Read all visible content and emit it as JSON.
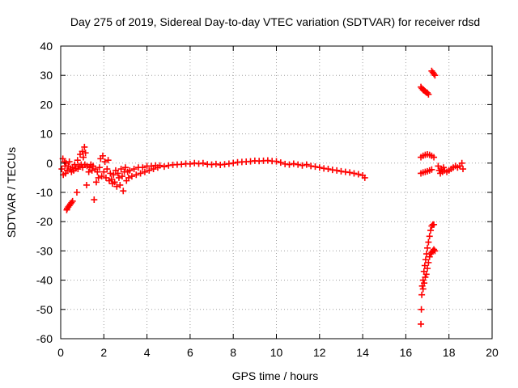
{
  "chart_data": {
    "type": "scatter",
    "title": "Day 275 of 2019, Sidereal Day-to-day VTEC variation (SDTVAR) for receiver rdsd",
    "xlabel": "GPS time / hours",
    "ylabel": "SDTVAR / TECUs",
    "xlim": [
      0,
      20
    ],
    "ylim": [
      -60,
      40
    ],
    "xticks": [
      "0",
      "2",
      "4",
      "6",
      "8",
      "10",
      "12",
      "14",
      "16",
      "18",
      "20"
    ],
    "yticks": [
      "40",
      "30",
      "20",
      "10",
      "0",
      "-10",
      "-20",
      "-30",
      "-40",
      "-50",
      "-60"
    ],
    "grid": true,
    "marker": "+",
    "series_color": "#ff0000",
    "series": [
      {
        "name": "SDTVAR",
        "points": [
          [
            0.05,
            -2.0
          ],
          [
            0.1,
            1.5
          ],
          [
            0.12,
            -4.0
          ],
          [
            0.18,
            0.5
          ],
          [
            0.2,
            -1.0
          ],
          [
            0.22,
            -3.5
          ],
          [
            0.25,
            0.0
          ],
          [
            0.28,
            -16.0
          ],
          [
            0.3,
            -15.5
          ],
          [
            0.35,
            -15.0
          ],
          [
            0.4,
            -14.5
          ],
          [
            0.45,
            -14.0
          ],
          [
            0.5,
            -13.5
          ],
          [
            0.55,
            -13.0
          ],
          [
            0.3,
            -2.5
          ],
          [
            0.35,
            -1.0
          ],
          [
            0.4,
            0.5
          ],
          [
            0.45,
            -2.0
          ],
          [
            0.5,
            -3.0
          ],
          [
            0.55,
            -1.5
          ],
          [
            0.6,
            -2.5
          ],
          [
            0.65,
            -0.5
          ],
          [
            0.7,
            -1.8
          ],
          [
            0.75,
            -10.0
          ],
          [
            0.78,
            1.0
          ],
          [
            0.8,
            -2.0
          ],
          [
            0.85,
            -1.0
          ],
          [
            0.9,
            3.0
          ],
          [
            0.95,
            -0.5
          ],
          [
            1.0,
            4.0
          ],
          [
            1.02,
            -1.5
          ],
          [
            1.05,
            2.0
          ],
          [
            1.1,
            5.5
          ],
          [
            1.12,
            -0.5
          ],
          [
            1.15,
            3.5
          ],
          [
            1.2,
            -7.5
          ],
          [
            1.22,
            -1.0
          ],
          [
            1.3,
            -3.0
          ],
          [
            1.35,
            -1.5
          ],
          [
            1.4,
            -0.5
          ],
          [
            1.45,
            -2.5
          ],
          [
            1.5,
            -1.0
          ],
          [
            1.55,
            -12.5
          ],
          [
            1.6,
            -2.0
          ],
          [
            1.65,
            -6.5
          ],
          [
            1.7,
            -3.0
          ],
          [
            1.75,
            -5.0
          ],
          [
            1.8,
            -1.5
          ],
          [
            1.85,
            1.5
          ],
          [
            1.9,
            -4.5
          ],
          [
            1.95,
            2.5
          ],
          [
            2.0,
            -3.0
          ],
          [
            2.05,
            0.5
          ],
          [
            2.1,
            -5.0
          ],
          [
            2.15,
            -2.0
          ],
          [
            2.2,
            1.0
          ],
          [
            2.25,
            -6.0
          ],
          [
            2.3,
            -3.5
          ],
          [
            2.35,
            -5.5
          ],
          [
            2.4,
            -7.0
          ],
          [
            2.45,
            -4.0
          ],
          [
            2.5,
            -6.5
          ],
          [
            2.55,
            -2.5
          ],
          [
            2.6,
            -8.0
          ],
          [
            2.65,
            -3.5
          ],
          [
            2.7,
            -5.0
          ],
          [
            2.75,
            -7.5
          ],
          [
            2.8,
            -2.0
          ],
          [
            2.85,
            -4.5
          ],
          [
            2.9,
            -9.5
          ],
          [
            2.95,
            -3.0
          ],
          [
            3.0,
            -1.5
          ],
          [
            3.05,
            -6.0
          ],
          [
            3.1,
            -3.0
          ],
          [
            3.15,
            -5.0
          ],
          [
            3.2,
            -2.5
          ],
          [
            3.3,
            -4.5
          ],
          [
            3.4,
            -2.0
          ],
          [
            3.5,
            -4.0
          ],
          [
            3.6,
            -1.5
          ],
          [
            3.7,
            -3.5
          ],
          [
            3.8,
            -1.5
          ],
          [
            3.9,
            -3.0
          ],
          [
            4.0,
            -1.0
          ],
          [
            4.1,
            -2.5
          ],
          [
            4.2,
            -1.0
          ],
          [
            4.3,
            -2.0
          ],
          [
            4.4,
            -0.8
          ],
          [
            4.5,
            -1.5
          ],
          [
            4.6,
            -0.8
          ],
          [
            4.8,
            -1.2
          ],
          [
            5.0,
            -0.8
          ],
          [
            5.2,
            -0.6
          ],
          [
            5.4,
            -0.5
          ],
          [
            5.6,
            -0.4
          ],
          [
            5.8,
            -0.2
          ],
          [
            6.0,
            -0.3
          ],
          [
            6.2,
            0.0
          ],
          [
            6.4,
            -0.2
          ],
          [
            6.6,
            0.0
          ],
          [
            6.8,
            -0.4
          ],
          [
            7.0,
            -0.5
          ],
          [
            7.2,
            -0.3
          ],
          [
            7.4,
            -0.6
          ],
          [
            7.6,
            -0.4
          ],
          [
            7.8,
            -0.2
          ],
          [
            8.0,
            0.0
          ],
          [
            8.2,
            0.3
          ],
          [
            8.4,
            0.4
          ],
          [
            8.6,
            0.5
          ],
          [
            8.8,
            0.6
          ],
          [
            9.0,
            0.8
          ],
          [
            9.2,
            0.7
          ],
          [
            9.4,
            0.8
          ],
          [
            9.6,
            0.9
          ],
          [
            9.8,
            0.7
          ],
          [
            10.0,
            0.6
          ],
          [
            10.2,
            0.2
          ],
          [
            10.4,
            -0.3
          ],
          [
            10.6,
            -0.5
          ],
          [
            10.8,
            -0.2
          ],
          [
            11.0,
            -0.5
          ],
          [
            11.2,
            -0.8
          ],
          [
            11.4,
            -0.5
          ],
          [
            11.6,
            -1.0
          ],
          [
            11.8,
            -1.2
          ],
          [
            12.0,
            -1.5
          ],
          [
            12.2,
            -1.8
          ],
          [
            12.4,
            -2.0
          ],
          [
            12.6,
            -2.3
          ],
          [
            12.8,
            -2.5
          ],
          [
            13.0,
            -2.8
          ],
          [
            13.2,
            -3.0
          ],
          [
            13.4,
            -3.2
          ],
          [
            13.6,
            -3.5
          ],
          [
            13.8,
            -3.8
          ],
          [
            14.0,
            -4.2
          ],
          [
            14.1,
            -5.0
          ],
          [
            16.7,
            26.0
          ],
          [
            16.75,
            25.5
          ],
          [
            16.8,
            25.0
          ],
          [
            16.85,
            24.8
          ],
          [
            16.9,
            24.5
          ],
          [
            16.95,
            24.2
          ],
          [
            17.0,
            24.0
          ],
          [
            17.05,
            23.5
          ],
          [
            17.2,
            31.5
          ],
          [
            17.25,
            31.0
          ],
          [
            17.3,
            30.5
          ],
          [
            17.35,
            30.0
          ],
          [
            16.7,
            2.0
          ],
          [
            16.8,
            2.5
          ],
          [
            16.9,
            2.8
          ],
          [
            17.0,
            3.0
          ],
          [
            17.1,
            2.8
          ],
          [
            17.2,
            2.5
          ],
          [
            17.3,
            2.0
          ],
          [
            16.7,
            -3.5
          ],
          [
            16.8,
            -3.2
          ],
          [
            16.9,
            -3.0
          ],
          [
            17.0,
            -2.8
          ],
          [
            17.1,
            -2.5
          ],
          [
            17.2,
            -2.2
          ],
          [
            16.7,
            -55.0
          ],
          [
            16.72,
            -50.0
          ],
          [
            16.74,
            -45.0
          ],
          [
            16.76,
            -42.0
          ],
          [
            16.8,
            -40.0
          ],
          [
            16.84,
            -37.0
          ],
          [
            16.88,
            -35.0
          ],
          [
            16.92,
            -33.0
          ],
          [
            16.96,
            -31.0
          ],
          [
            17.0,
            -29.0
          ],
          [
            17.05,
            -27.0
          ],
          [
            17.1,
            -25.0
          ],
          [
            17.15,
            -23.0
          ],
          [
            17.2,
            -21.5
          ],
          [
            17.25,
            -21.0
          ],
          [
            17.3,
            -21.0
          ],
          [
            16.8,
            -43.0
          ],
          [
            16.85,
            -41.0
          ],
          [
            16.9,
            -39.0
          ],
          [
            16.95,
            -38.0
          ],
          [
            17.0,
            -36.0
          ],
          [
            17.05,
            -34.0
          ],
          [
            17.1,
            -32.0
          ],
          [
            17.15,
            -31.0
          ],
          [
            17.2,
            -30.5
          ],
          [
            17.25,
            -30.0
          ],
          [
            17.3,
            -29.5
          ],
          [
            17.35,
            -30.0
          ],
          [
            17.5,
            -1.0
          ],
          [
            17.55,
            -2.5
          ],
          [
            17.6,
            -3.5
          ],
          [
            17.65,
            -2.0
          ],
          [
            17.7,
            -3.0
          ],
          [
            17.75,
            -1.5
          ],
          [
            17.8,
            -2.5
          ],
          [
            17.9,
            -3.0
          ],
          [
            18.0,
            -2.5
          ],
          [
            18.1,
            -2.0
          ],
          [
            18.2,
            -1.5
          ],
          [
            18.3,
            -1.0
          ],
          [
            18.4,
            -1.5
          ],
          [
            18.5,
            -1.0
          ],
          [
            18.6,
            0.0
          ],
          [
            18.65,
            -2.0
          ]
        ]
      }
    ]
  }
}
